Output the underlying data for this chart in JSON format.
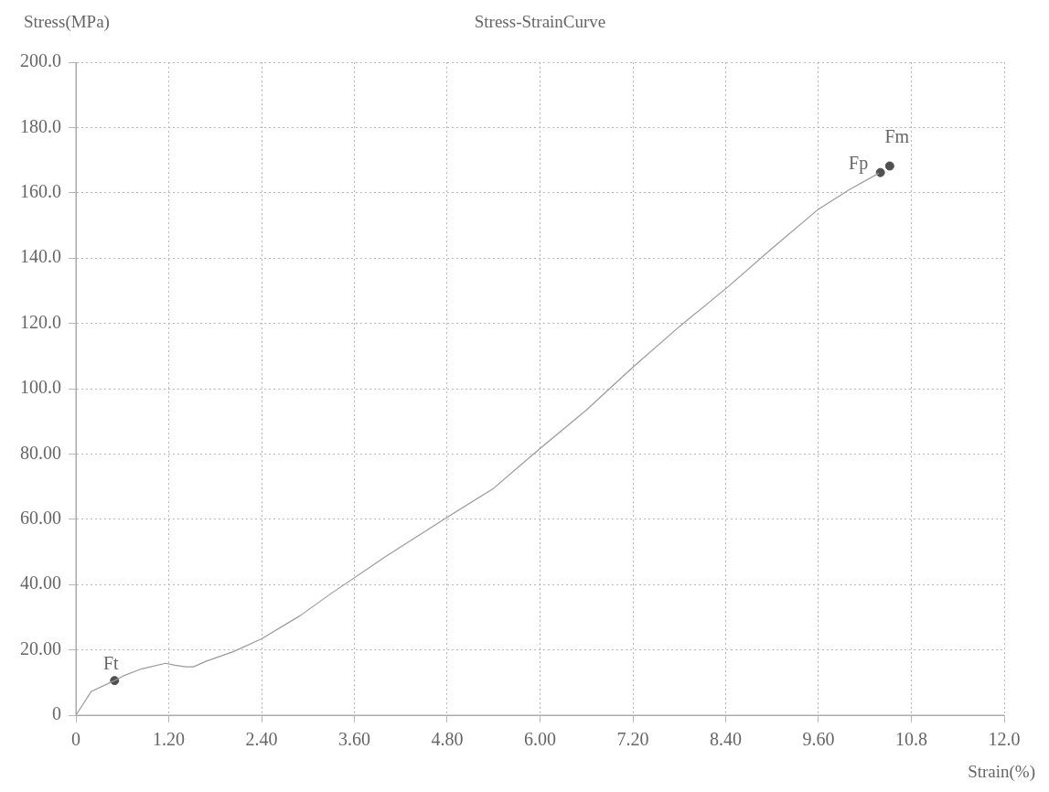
{
  "chart_data": {
    "type": "line",
    "title": "Stress-StrainCurve",
    "xlabel": "Strain(%)",
    "ylabel": "Stress(MPa)",
    "series": [
      {
        "color": "#9a9a9a",
        "line_style": "solid",
        "marker": "none",
        "x": [
          0,
          0.2,
          0.5,
          0.61,
          0.85,
          1.16,
          1.28,
          1.42,
          1.52,
          1.68,
          2.04,
          2.4,
          2.9,
          3.27,
          4.0,
          4.76,
          5.4,
          5.96,
          6.6,
          7.2,
          7.8,
          8.44,
          9.0,
          9.6,
          10.0,
          10.38
        ],
        "values": [
          0,
          7.3,
          10.6,
          12.0,
          14.2,
          15.9,
          15.3,
          14.8,
          14.8,
          16.5,
          19.5,
          23.4,
          30.5,
          36.8,
          48.5,
          60.0,
          69.5,
          80.9,
          93.5,
          106.6,
          119.0,
          131.4,
          143.0,
          155.0,
          161.0,
          166.0
        ]
      },
      {
        "type": "scatter",
        "color": "#505050",
        "marker": "circle",
        "x": [
          0.5,
          10.4,
          10.52
        ],
        "values": [
          10.6,
          166.2,
          168.2
        ]
      }
    ],
    "annotations": [
      {
        "text": "Ft",
        "x": 0.5,
        "y": 10.6
      },
      {
        "text": "Fp",
        "x": 10.4,
        "y": 166.2
      },
      {
        "text": "Fm",
        "x": 10.52,
        "y": 168.2
      }
    ],
    "xlim": [
      0,
      12
    ],
    "ylim": [
      0,
      200
    ],
    "xticks": [
      0,
      {
        "value": 1.2,
        "label": "1.20"
      },
      {
        "value": 2.4,
        "label": "2.40"
      },
      {
        "value": 3.6,
        "label": "3.60"
      },
      {
        "value": 4.8,
        "label": "4.80"
      },
      {
        "value": 6,
        "label": "6.00"
      },
      {
        "value": 7.2,
        "label": "7.20"
      },
      {
        "value": 8.4,
        "label": "8.40"
      },
      {
        "value": 9.6,
        "label": "9.60"
      },
      10.8,
      {
        "value": 12,
        "label": "12.0"
      }
    ],
    "yticks": [
      0,
      {
        "value": 20,
        "label": "20.00"
      },
      {
        "value": 40,
        "label": "40.00"
      },
      {
        "value": 60,
        "label": "60.00"
      },
      {
        "value": 80,
        "label": "80.00"
      },
      {
        "value": 100,
        "label": "100.0"
      },
      {
        "value": 120,
        "label": "120.0"
      },
      {
        "value": 140,
        "label": "140.0"
      },
      {
        "value": 160,
        "label": "160.0"
      },
      {
        "value": 180,
        "label": "180.0"
      },
      {
        "value": 200,
        "label": "200.0"
      }
    ],
    "grid": true,
    "legend": false
  }
}
